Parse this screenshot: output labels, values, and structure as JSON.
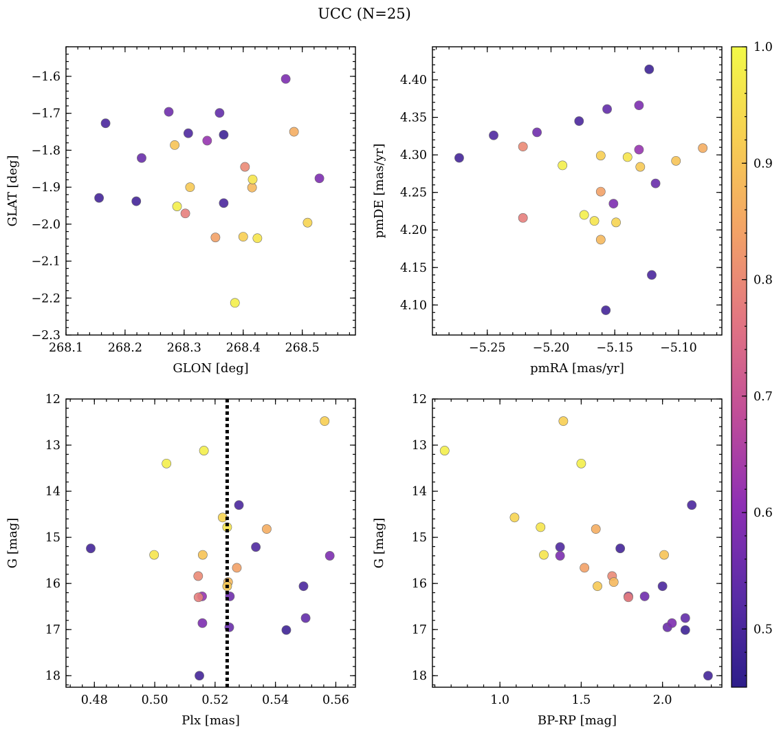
{
  "chart_data": {
    "title": "UCC (N=25)",
    "type": "scatter",
    "colorbar": {
      "vmin": 0.45,
      "vmax": 1.0,
      "ticks": [
        "0.5",
        "0.6",
        "0.7",
        "0.8",
        "0.9",
        "1.0"
      ],
      "colormap": "plasma",
      "stops": [
        "#2d1e8a",
        "#5a2ca6",
        "#8e2fb4",
        "#c14e98",
        "#e27582",
        "#f3a366",
        "#f7cf52",
        "#f2f948"
      ]
    },
    "stars": [
      {
        "glon": 268.472,
        "glat": -1.607,
        "pmra": -5.131,
        "pmde": 4.366,
        "plx": 0.5158,
        "g": 16.86,
        "bprp": 2.058,
        "p": 0.58
      },
      {
        "glon": 268.167,
        "glat": -1.727,
        "pmra": -5.178,
        "pmde": 4.345,
        "plx": 0.5279,
        "g": 14.3,
        "bprp": 2.18,
        "p": 0.5
      },
      {
        "glon": 268.274,
        "glat": -1.696,
        "pmra": -5.211,
        "pmde": 4.33,
        "plx": 0.5249,
        "g": 16.28,
        "bprp": 1.89,
        "p": 0.56
      },
      {
        "glon": 268.36,
        "glat": -1.699,
        "pmra": -5.156,
        "pmde": 4.361,
        "plx": 0.55,
        "g": 16.75,
        "bprp": 2.14,
        "p": 0.54
      },
      {
        "glon": 268.307,
        "glat": -1.754,
        "pmra": -5.245,
        "pmde": 4.326,
        "plx": 0.5335,
        "g": 15.21,
        "bprp": 1.37,
        "p": 0.51
      },
      {
        "glon": 268.367,
        "glat": -1.758,
        "pmra": -5.123,
        "pmde": 4.414,
        "plx": 0.5436,
        "g": 17.01,
        "bprp": 2.14,
        "p": 0.48
      },
      {
        "glon": 268.284,
        "glat": -1.786,
        "pmra": -5.102,
        "pmde": 4.292,
        "plx": 0.5159,
        "g": 15.38,
        "bprp": 2.01,
        "p": 0.9
      },
      {
        "glon": 268.339,
        "glat": -1.774,
        "pmra": -5.131,
        "pmde": 4.307,
        "plx": 0.5157,
        "g": 16.28,
        "bprp": 1.79,
        "p": 0.62
      },
      {
        "glon": 268.228,
        "glat": -1.821,
        "pmra": -5.118,
        "pmde": 4.262,
        "plx": 0.5247,
        "g": 16.95,
        "bprp": 2.03,
        "p": 0.55
      },
      {
        "glon": 268.486,
        "glat": -1.75,
        "pmra": -5.081,
        "pmde": 4.309,
        "plx": 0.5371,
        "g": 14.82,
        "bprp": 1.59,
        "p": 0.86
      },
      {
        "glon": 268.403,
        "glat": -1.845,
        "pmra": -5.222,
        "pmde": 4.311,
        "plx": 0.5144,
        "g": 15.84,
        "bprp": 1.69,
        "p": 0.8
      },
      {
        "glon": 268.416,
        "glat": -1.879,
        "pmra": -5.14,
        "pmde": 4.297,
        "plx": 0.524,
        "g": 14.78,
        "bprp": 1.25,
        "p": 0.96
      },
      {
        "glon": 268.529,
        "glat": -1.876,
        "pmra": -5.151,
        "pmde": 4.235,
        "plx": 0.558,
        "g": 15.4,
        "bprp": 1.37,
        "p": 0.58
      },
      {
        "glon": 268.31,
        "glat": -1.9,
        "pmra": -5.13,
        "pmde": 4.284,
        "plx": 0.524,
        "g": 16.06,
        "bprp": 1.6,
        "p": 0.91
      },
      {
        "glon": 268.415,
        "glat": -1.901,
        "pmra": -5.161,
        "pmde": 4.187,
        "plx": 0.5243,
        "g": 15.97,
        "bprp": 1.7,
        "p": 0.88
      },
      {
        "glon": 268.156,
        "glat": -1.929,
        "pmra": -5.272,
        "pmde": 4.296,
        "plx": 0.4788,
        "g": 15.24,
        "bprp": 1.74,
        "p": 0.49
      },
      {
        "glon": 268.219,
        "glat": -1.938,
        "pmra": -5.157,
        "pmde": 4.093,
        "plx": 0.5148,
        "g": 18.0,
        "bprp": 2.28,
        "p": 0.49
      },
      {
        "glon": 268.367,
        "glat": -1.943,
        "pmra": -5.121,
        "pmde": 4.14,
        "plx": 0.5493,
        "g": 16.06,
        "bprp": 2.0,
        "p": 0.5
      },
      {
        "glon": 268.288,
        "glat": -1.952,
        "pmra": -5.191,
        "pmde": 4.286,
        "plx": 0.5039,
        "g": 13.4,
        "bprp": 1.5,
        "p": 0.98
      },
      {
        "glon": 268.302,
        "glat": -1.971,
        "pmra": -5.222,
        "pmde": 4.216,
        "plx": 0.5145,
        "g": 16.3,
        "bprp": 1.79,
        "p": 0.78
      },
      {
        "glon": 268.509,
        "glat": -1.996,
        "pmra": -5.149,
        "pmde": 4.21,
        "plx": 0.5225,
        "g": 14.57,
        "bprp": 1.09,
        "p": 0.93
      },
      {
        "glon": 268.353,
        "glat": -2.036,
        "pmra": -5.161,
        "pmde": 4.251,
        "plx": 0.5272,
        "g": 15.66,
        "bprp": 1.52,
        "p": 0.84
      },
      {
        "glon": 268.4,
        "glat": -2.034,
        "pmra": -5.161,
        "pmde": 4.299,
        "plx": 0.5563,
        "g": 12.48,
        "bprp": 1.39,
        "p": 0.92
      },
      {
        "glon": 268.424,
        "glat": -2.038,
        "pmra": -5.166,
        "pmde": 4.212,
        "plx": 0.4998,
        "g": 15.38,
        "bprp": 1.27,
        "p": 0.96
      },
      {
        "glon": 268.386,
        "glat": -2.213,
        "pmra": -5.174,
        "pmde": 4.22,
        "plx": 0.5163,
        "g": 13.12,
        "bprp": 0.66,
        "p": 0.98
      }
    ],
    "panels": [
      {
        "x_key": "glon",
        "y_key": "glat",
        "xlabel": "GLON [deg]",
        "ylabel": "GLAT [deg]",
        "xlim": [
          268.1,
          268.59
        ],
        "ylim": [
          -2.3,
          -1.52
        ],
        "y_inverted": false,
        "xticks": [
          {
            "v": 268.1,
            "label": "268.1"
          },
          {
            "v": 268.2,
            "label": "268.2"
          },
          {
            "v": 268.3,
            "label": "268.3"
          },
          {
            "v": 268.4,
            "label": "268.4"
          },
          {
            "v": 268.5,
            "label": "268.5"
          }
        ],
        "yticks": [
          {
            "v": -2.3,
            "label": "−2.3"
          },
          {
            "v": -2.2,
            "label": "−2.2"
          },
          {
            "v": -2.1,
            "label": "−2.1"
          },
          {
            "v": -2.0,
            "label": "−2.0"
          },
          {
            "v": -1.9,
            "label": "−1.9"
          },
          {
            "v": -1.8,
            "label": "−1.8"
          },
          {
            "v": -1.7,
            "label": "−1.7"
          },
          {
            "v": -1.6,
            "label": "−1.6"
          }
        ],
        "x_minor_step": 0.02,
        "y_minor_step": 0.02
      },
      {
        "x_key": "pmra",
        "y_key": "pmde",
        "xlabel": "pmRA [mas/yr]",
        "ylabel": "pmDE [mas/yr]",
        "xlim": [
          -5.293,
          -5.066
        ],
        "ylim": [
          4.06,
          4.444
        ],
        "y_inverted": false,
        "xticks": [
          {
            "v": -5.25,
            "label": "−5.25"
          },
          {
            "v": -5.2,
            "label": "−5.20"
          },
          {
            "v": -5.15,
            "label": "−5.15"
          },
          {
            "v": -5.1,
            "label": "−5.10"
          }
        ],
        "yticks": [
          {
            "v": 4.1,
            "label": "4.10"
          },
          {
            "v": 4.15,
            "label": "4.15"
          },
          {
            "v": 4.2,
            "label": "4.20"
          },
          {
            "v": 4.25,
            "label": "4.25"
          },
          {
            "v": 4.3,
            "label": "4.30"
          },
          {
            "v": 4.35,
            "label": "4.35"
          },
          {
            "v": 4.4,
            "label": "4.40"
          }
        ],
        "x_minor_step": 0.01,
        "y_minor_step": 0.01
      },
      {
        "x_key": "plx",
        "y_key": "g",
        "xlabel": "Plx [mas]",
        "ylabel": "G [mag]",
        "xlim": [
          0.4706,
          0.5665
        ],
        "ylim": [
          12.0,
          18.25
        ],
        "y_inverted": true,
        "xticks": [
          {
            "v": 0.48,
            "label": "0.48"
          },
          {
            "v": 0.5,
            "label": "0.50"
          },
          {
            "v": 0.52,
            "label": "0.52"
          },
          {
            "v": 0.54,
            "label": "0.54"
          },
          {
            "v": 0.56,
            "label": "0.56"
          }
        ],
        "yticks": [
          {
            "v": 12,
            "label": "12"
          },
          {
            "v": 13,
            "label": "13"
          },
          {
            "v": 14,
            "label": "14"
          },
          {
            "v": 15,
            "label": "15"
          },
          {
            "v": 16,
            "label": "16"
          },
          {
            "v": 17,
            "label": "17"
          },
          {
            "v": 18,
            "label": "18"
          }
        ],
        "x_minor_step": 0.004,
        "y_minor_step": 0.2,
        "vline": {
          "x": 0.524,
          "style": "dotted"
        }
      },
      {
        "x_key": "bprp",
        "y_key": "g",
        "xlabel": "BP-RP [mag]",
        "ylabel": "G [mag]",
        "xlim": [
          0.585,
          2.365
        ],
        "ylim": [
          12.0,
          18.25
        ],
        "y_inverted": true,
        "xticks": [
          {
            "v": 1.0,
            "label": "1.0"
          },
          {
            "v": 1.5,
            "label": "1.5"
          },
          {
            "v": 2.0,
            "label": "2.0"
          }
        ],
        "yticks": [
          {
            "v": 12,
            "label": "12"
          },
          {
            "v": 13,
            "label": "13"
          },
          {
            "v": 14,
            "label": "14"
          },
          {
            "v": 15,
            "label": "15"
          },
          {
            "v": 16,
            "label": "16"
          },
          {
            "v": 17,
            "label": "17"
          },
          {
            "v": 18,
            "label": "18"
          }
        ],
        "x_minor_step": 0.1,
        "y_minor_step": 0.2
      }
    ]
  }
}
